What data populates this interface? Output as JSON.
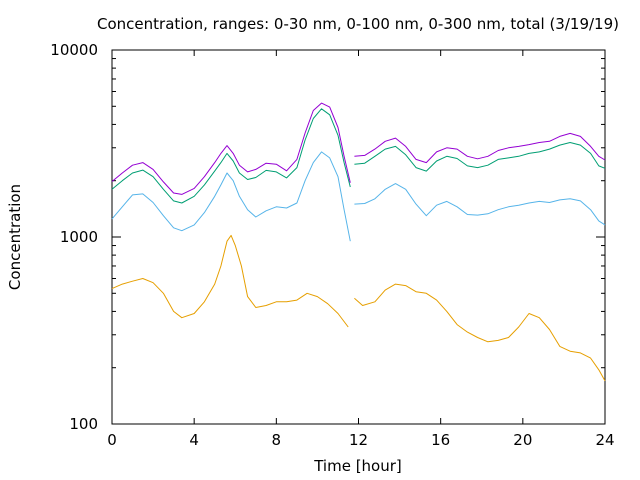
{
  "chart_data": {
    "type": "line",
    "title": "Concentration, ranges: 0-30 nm, 0-100 nm, 0-300 nm, total (3/19/19)",
    "xlabel": "Time [hour]",
    "ylabel": "Concentration",
    "xlim": [
      0,
      24
    ],
    "ylim": [
      100,
      10000
    ],
    "y_scale": "log",
    "x_ticks": [
      "0",
      "4",
      "8",
      "12",
      "16",
      "20",
      "24"
    ],
    "y_ticks": [
      "100",
      "1000",
      "10000"
    ],
    "grid": false,
    "legend": "none",
    "series": [
      {
        "color": "#e69f00",
        "segments": [
          [
            [
              0,
              530
            ],
            [
              0.5,
              560
            ],
            [
              1,
              580
            ],
            [
              1.5,
              600
            ],
            [
              2,
              570
            ],
            [
              2.5,
              500
            ],
            [
              3,
              400
            ],
            [
              3.4,
              370
            ],
            [
              4,
              390
            ],
            [
              4.5,
              450
            ],
            [
              5,
              560
            ],
            [
              5.3,
              700
            ],
            [
              5.6,
              950
            ],
            [
              5.8,
              1020
            ],
            [
              6,
              900
            ],
            [
              6.3,
              700
            ],
            [
              6.6,
              480
            ],
            [
              7,
              420
            ],
            [
              7.5,
              430
            ],
            [
              8,
              450
            ],
            [
              8.5,
              450
            ],
            [
              9,
              460
            ],
            [
              9.5,
              500
            ],
            [
              10,
              480
            ],
            [
              10.5,
              440
            ],
            [
              11,
              390
            ],
            [
              11.5,
              330
            ]
          ],
          [
            [
              11.8,
              470
            ],
            [
              12.2,
              430
            ],
            [
              12.8,
              450
            ],
            [
              13.3,
              520
            ],
            [
              13.8,
              560
            ],
            [
              14.3,
              550
            ],
            [
              14.8,
              510
            ],
            [
              15.3,
              500
            ],
            [
              15.8,
              460
            ],
            [
              16.3,
              400
            ],
            [
              16.8,
              340
            ],
            [
              17.3,
              310
            ],
            [
              17.8,
              290
            ],
            [
              18.3,
              275
            ],
            [
              18.8,
              280
            ],
            [
              19.3,
              290
            ],
            [
              19.8,
              330
            ],
            [
              20.3,
              390
            ],
            [
              20.8,
              370
            ],
            [
              21.3,
              320
            ],
            [
              21.8,
              260
            ],
            [
              22.3,
              245
            ],
            [
              22.8,
              240
            ],
            [
              23.3,
              225
            ],
            [
              23.7,
              195
            ],
            [
              24,
              170
            ]
          ]
        ]
      },
      {
        "color": "#56b4e9",
        "segments": [
          [
            [
              0,
              1250
            ],
            [
              0.5,
              1450
            ],
            [
              1,
              1680
            ],
            [
              1.5,
              1700
            ],
            [
              2,
              1530
            ],
            [
              2.5,
              1300
            ],
            [
              3,
              1120
            ],
            [
              3.4,
              1080
            ],
            [
              4,
              1160
            ],
            [
              4.5,
              1350
            ],
            [
              5,
              1650
            ],
            [
              5.3,
              1900
            ],
            [
              5.6,
              2200
            ],
            [
              5.9,
              2000
            ],
            [
              6.2,
              1650
            ],
            [
              6.6,
              1400
            ],
            [
              7,
              1280
            ],
            [
              7.5,
              1380
            ],
            [
              8,
              1450
            ],
            [
              8.5,
              1430
            ],
            [
              9,
              1520
            ],
            [
              9.4,
              2000
            ],
            [
              9.8,
              2500
            ],
            [
              10.2,
              2850
            ],
            [
              10.6,
              2650
            ],
            [
              11,
              2100
            ],
            [
              11.3,
              1400
            ],
            [
              11.6,
              950
            ]
          ],
          [
            [
              11.8,
              1500
            ],
            [
              12.3,
              1510
            ],
            [
              12.8,
              1600
            ],
            [
              13.3,
              1800
            ],
            [
              13.8,
              1930
            ],
            [
              14.3,
              1800
            ],
            [
              14.8,
              1500
            ],
            [
              15.3,
              1300
            ],
            [
              15.8,
              1480
            ],
            [
              16.3,
              1550
            ],
            [
              16.8,
              1450
            ],
            [
              17.3,
              1320
            ],
            [
              17.8,
              1310
            ],
            [
              18.3,
              1330
            ],
            [
              18.8,
              1400
            ],
            [
              19.3,
              1450
            ],
            [
              19.8,
              1480
            ],
            [
              20.3,
              1520
            ],
            [
              20.8,
              1550
            ],
            [
              21.3,
              1530
            ],
            [
              21.8,
              1580
            ],
            [
              22.3,
              1600
            ],
            [
              22.8,
              1560
            ],
            [
              23.3,
              1400
            ],
            [
              23.7,
              1220
            ],
            [
              24,
              1160
            ]
          ]
        ]
      },
      {
        "color": "#009e73",
        "segments": [
          [
            [
              0,
              1800
            ],
            [
              0.5,
              2000
            ],
            [
              1,
              2200
            ],
            [
              1.5,
              2280
            ],
            [
              2,
              2100
            ],
            [
              2.5,
              1800
            ],
            [
              3,
              1560
            ],
            [
              3.4,
              1520
            ],
            [
              4,
              1650
            ],
            [
              4.5,
              1900
            ],
            [
              5,
              2250
            ],
            [
              5.3,
              2500
            ],
            [
              5.6,
              2800
            ],
            [
              5.9,
              2550
            ],
            [
              6.2,
              2200
            ],
            [
              6.6,
              2030
            ],
            [
              7,
              2080
            ],
            [
              7.5,
              2270
            ],
            [
              8,
              2230
            ],
            [
              8.5,
              2070
            ],
            [
              9,
              2350
            ],
            [
              9.4,
              3300
            ],
            [
              9.8,
              4300
            ],
            [
              10.2,
              4850
            ],
            [
              10.6,
              4500
            ],
            [
              11,
              3500
            ],
            [
              11.3,
              2500
            ],
            [
              11.6,
              1850
            ]
          ],
          [
            [
              11.8,
              2450
            ],
            [
              12.3,
              2480
            ],
            [
              12.8,
              2700
            ],
            [
              13.3,
              2950
            ],
            [
              13.8,
              3050
            ],
            [
              14.3,
              2750
            ],
            [
              14.8,
              2350
            ],
            [
              15.3,
              2250
            ],
            [
              15.8,
              2550
            ],
            [
              16.3,
              2700
            ],
            [
              16.8,
              2630
            ],
            [
              17.3,
              2400
            ],
            [
              17.8,
              2350
            ],
            [
              18.3,
              2420
            ],
            [
              18.8,
              2600
            ],
            [
              19.3,
              2650
            ],
            [
              19.8,
              2700
            ],
            [
              20.3,
              2800
            ],
            [
              20.8,
              2850
            ],
            [
              21.3,
              2950
            ],
            [
              21.8,
              3100
            ],
            [
              22.3,
              3200
            ],
            [
              22.8,
              3100
            ],
            [
              23.3,
              2800
            ],
            [
              23.7,
              2400
            ],
            [
              24,
              2330
            ]
          ]
        ]
      },
      {
        "color": "#9400d3",
        "segments": [
          [
            [
              0,
              1980
            ],
            [
              0.5,
              2200
            ],
            [
              1,
              2420
            ],
            [
              1.5,
              2500
            ],
            [
              2,
              2300
            ],
            [
              2.5,
              1970
            ],
            [
              3,
              1720
            ],
            [
              3.4,
              1690
            ],
            [
              4,
              1820
            ],
            [
              4.5,
              2100
            ],
            [
              5,
              2500
            ],
            [
              5.3,
              2800
            ],
            [
              5.6,
              3080
            ],
            [
              5.9,
              2800
            ],
            [
              6.2,
              2420
            ],
            [
              6.6,
              2230
            ],
            [
              7,
              2300
            ],
            [
              7.5,
              2480
            ],
            [
              8,
              2450
            ],
            [
              8.5,
              2260
            ],
            [
              9,
              2600
            ],
            [
              9.4,
              3600
            ],
            [
              9.8,
              4750
            ],
            [
              10.2,
              5200
            ],
            [
              10.6,
              4950
            ],
            [
              11,
              3850
            ],
            [
              11.3,
              2700
            ],
            [
              11.6,
              1950
            ]
          ],
          [
            [
              11.8,
              2700
            ],
            [
              12.3,
              2730
            ],
            [
              12.8,
              2950
            ],
            [
              13.3,
              3250
            ],
            [
              13.8,
              3380
            ],
            [
              14.3,
              3050
            ],
            [
              14.8,
              2600
            ],
            [
              15.3,
              2500
            ],
            [
              15.8,
              2850
            ],
            [
              16.3,
              3000
            ],
            [
              16.8,
              2950
            ],
            [
              17.3,
              2700
            ],
            [
              17.8,
              2620
            ],
            [
              18.3,
              2700
            ],
            [
              18.8,
              2900
            ],
            [
              19.3,
              3000
            ],
            [
              19.8,
              3050
            ],
            [
              20.3,
              3120
            ],
            [
              20.8,
              3200
            ],
            [
              21.3,
              3250
            ],
            [
              21.8,
              3450
            ],
            [
              22.3,
              3580
            ],
            [
              22.8,
              3450
            ],
            [
              23.3,
              3050
            ],
            [
              23.7,
              2700
            ],
            [
              24,
              2580
            ]
          ]
        ]
      }
    ]
  }
}
